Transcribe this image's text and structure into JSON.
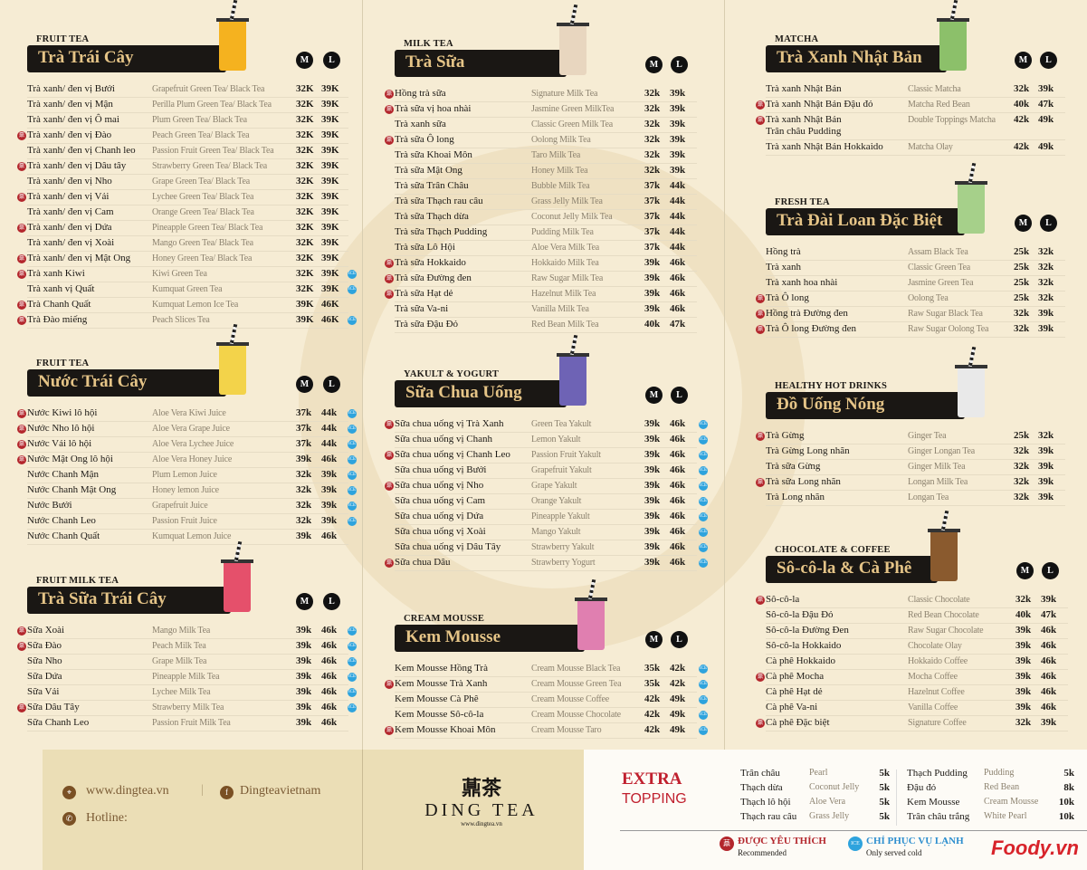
{
  "colors": {
    "background": "#f6ecd4",
    "title_bar": "#1a1714",
    "title_text": "#e5c487",
    "recommended": "#b3262c",
    "ice": "#2ea3dd",
    "extra": "#c0202e"
  },
  "size_labels": {
    "m": "M",
    "l": "L"
  },
  "sections": {
    "fruit_tea": {
      "category": "FRUIT TEA",
      "title": "Trà Trái Cây",
      "rows": [
        {
          "vi": "Trà xanh/ đen vị Bưởi",
          "en": "Grapefruit Green Tea/ Black Tea",
          "m": "32K",
          "l": "39K"
        },
        {
          "vi": "Trà xanh/ đen vị Mận",
          "en": "Perilla Plum Green Tea/ Black Tea",
          "m": "32K",
          "l": "39K"
        },
        {
          "vi": "Trà xanh/ đen vị Ô mai",
          "en": "Plum Green Tea/ Black Tea",
          "m": "32K",
          "l": "39K"
        },
        {
          "vi": "Trà xanh/ đen vị Đào",
          "en": "Peach Green Tea/ Black Tea",
          "m": "32K",
          "l": "39K",
          "rec": true
        },
        {
          "vi": "Trà xanh/ đen vị Chanh leo",
          "en": "Passion Fruit Green Tea/ Black Tea",
          "m": "32K",
          "l": "39K"
        },
        {
          "vi": "Trà xanh/ đen vị Dâu tây",
          "en": "Strawberry Green Tea/ Black Tea",
          "m": "32K",
          "l": "39K",
          "rec": true
        },
        {
          "vi": "Trà xanh/ đen vị Nho",
          "en": "Grape Green Tea/ Black Tea",
          "m": "32K",
          "l": "39K"
        },
        {
          "vi": "Trà xanh/ đen vị Vải",
          "en": "Lychee Green Tea/ Black Tea",
          "m": "32K",
          "l": "39K",
          "rec": true
        },
        {
          "vi": "Trà xanh/ đen vị Cam",
          "en": "Orange Green Tea/ Black Tea",
          "m": "32K",
          "l": "39K"
        },
        {
          "vi": "Trà xanh/ đen vị Dứa",
          "en": "Pineapple Green Tea/ Black Tea",
          "m": "32K",
          "l": "39K",
          "rec": true
        },
        {
          "vi": "Trà xanh/ đen vị Xoài",
          "en": "Mango Green Tea/ Black Tea",
          "m": "32K",
          "l": "39K"
        },
        {
          "vi": "Trà xanh/ đen vị Mật Ong",
          "en": "Honey Green Tea/ Black Tea",
          "m": "32K",
          "l": "39K",
          "rec": true
        },
        {
          "vi": "Trà xanh Kiwi",
          "en": "Kiwi Green Tea",
          "m": "32K",
          "l": "39K",
          "rec": true,
          "ice": true
        },
        {
          "vi": "Trà xanh vị Quất",
          "en": "Kumquat Green Tea",
          "m": "32K",
          "l": "39K",
          "ice": true
        },
        {
          "vi": "Trà Chanh Quất",
          "en": "Kumquat Lemon Ice Tea",
          "m": "39K",
          "l": "46K",
          "rec": true
        },
        {
          "vi": "Trà Đào miếng",
          "en": "Peach Slices Tea",
          "m": "39K",
          "l": "46K",
          "rec": true,
          "ice": true
        }
      ]
    },
    "juice": {
      "category": "FRUIT TEA",
      "title": "Nước Trái Cây",
      "rows": [
        {
          "vi": "Nước Kiwi lô hội",
          "en": "Aloe Vera Kiwi Juice",
          "m": "37k",
          "l": "44k",
          "rec": true,
          "ice": true
        },
        {
          "vi": "Nước Nho lô hội",
          "en": "Aloe Vera Grape Juice",
          "m": "37k",
          "l": "44k",
          "rec": true,
          "ice": true
        },
        {
          "vi": "Nước Vải lô hội",
          "en": "Aloe Vera Lychee Juice",
          "m": "37k",
          "l": "44k",
          "rec": true,
          "ice": true
        },
        {
          "vi": "Nước Mật Ong lô hội",
          "en": "Aloe Vera Honey Juice",
          "m": "39k",
          "l": "46k",
          "rec": true,
          "ice": true
        },
        {
          "vi": "Nước Chanh Mận",
          "en": "Plum Lemon Juice",
          "m": "32k",
          "l": "39k",
          "ice": true
        },
        {
          "vi": "Nước Chanh Mật Ong",
          "en": "Honey lemon Juice",
          "m": "32k",
          "l": "39k",
          "ice": true
        },
        {
          "vi": "Nước Bưởi",
          "en": "Grapefruit Juice",
          "m": "32k",
          "l": "39k",
          "ice": true
        },
        {
          "vi": "Nước Chanh Leo",
          "en": "Passion Fruit Juice",
          "m": "32k",
          "l": "39k",
          "ice": true
        },
        {
          "vi": "Nước Chanh Quất",
          "en": "Kumquat Lemon Juice",
          "m": "39k",
          "l": "46k"
        }
      ]
    },
    "fruit_milk_tea": {
      "category": "FRUIT MILK TEA",
      "title": "Trà Sữa Trái Cây",
      "rows": [
        {
          "vi": "Sữa Xoài",
          "en": "Mango Milk Tea",
          "m": "39k",
          "l": "46k",
          "rec": true,
          "ice": true
        },
        {
          "vi": "Sữa Đào",
          "en": "Peach Milk Tea",
          "m": "39k",
          "l": "46k",
          "rec": true,
          "ice": true
        },
        {
          "vi": "Sữa Nho",
          "en": "Grape Milk Tea",
          "m": "39k",
          "l": "46k",
          "ice": true
        },
        {
          "vi": "Sữa Dứa",
          "en": "Pineapple Milk Tea",
          "m": "39k",
          "l": "46k",
          "ice": true
        },
        {
          "vi": "Sữa Vải",
          "en": "Lychee Milk Tea",
          "m": "39k",
          "l": "46k",
          "ice": true
        },
        {
          "vi": "Sữa Dâu Tây",
          "en": "Strawberry Milk Tea",
          "m": "39k",
          "l": "46k",
          "rec": true,
          "ice": true
        },
        {
          "vi": "Sữa Chanh Leo",
          "en": "Passion Fruit Milk Tea",
          "m": "39k",
          "l": "46k"
        }
      ]
    },
    "milk_tea": {
      "category": "MILK TEA",
      "title": "Trà Sữa",
      "rows": [
        {
          "vi": "Hồng trà sữa",
          "en": "Signature Milk Tea",
          "m": "32k",
          "l": "39k",
          "rec": true
        },
        {
          "vi": "Trà sữa vị hoa nhài",
          "en": "Jasmine Green MilkTea",
          "m": "32k",
          "l": "39k",
          "rec": true
        },
        {
          "vi": "Trà xanh sữa",
          "en": "Classic Green Milk Tea",
          "m": "32k",
          "l": "39k"
        },
        {
          "vi": "Trà sữa Ô long",
          "en": "Oolong Milk Tea",
          "m": "32k",
          "l": "39k",
          "rec": true
        },
        {
          "vi": "Trà sữa Khoai Môn",
          "en": "Taro Milk Tea",
          "m": "32k",
          "l": "39k"
        },
        {
          "vi": "Trà sữa Mật Ong",
          "en": "Honey Milk Tea",
          "m": "32k",
          "l": "39k"
        },
        {
          "vi": "Trà sữa Trân Châu",
          "en": "Bubble Milk Tea",
          "m": "37k",
          "l": "44k"
        },
        {
          "vi": "Trà sữa Thạch rau câu",
          "en": "Grass Jelly Milk Tea",
          "m": "37k",
          "l": "44k"
        },
        {
          "vi": "Trà sữa Thạch dừa",
          "en": "Coconut Jelly Milk Tea",
          "m": "37k",
          "l": "44k"
        },
        {
          "vi": "Trà sữa Thạch Pudding",
          "en": "Pudding Milk Tea",
          "m": "37k",
          "l": "44k"
        },
        {
          "vi": "Trà sữa Lô Hội",
          "en": "Aloe Vera Milk Tea",
          "m": "37k",
          "l": "44k"
        },
        {
          "vi": "Trà sữa Hokkaido",
          "en": "Hokkaido Milk Tea",
          "m": "39k",
          "l": "46k",
          "rec": true
        },
        {
          "vi": "Trà sữa Đường đen",
          "en": "Raw Sugar Milk Tea",
          "m": "39k",
          "l": "46k",
          "rec": true
        },
        {
          "vi": "Trà sữa Hạt dẻ",
          "en": "Hazelnut Milk Tea",
          "m": "39k",
          "l": "46k",
          "rec": true
        },
        {
          "vi": "Trà sữa Va-ni",
          "en": "Vanilla Milk Tea",
          "m": "39k",
          "l": "46k"
        },
        {
          "vi": "Trà sữa Đậu Đỏ",
          "en": "Red Bean Milk Tea",
          "m": "40k",
          "l": "47k"
        }
      ]
    },
    "yakult": {
      "category": "YAKULT & YOGURT",
      "title": "Sữa Chua Uống",
      "rows": [
        {
          "vi": "Sữa chua uống vị Trà Xanh",
          "en": "Green Tea Yakult",
          "m": "39k",
          "l": "46k",
          "rec": true,
          "ice": true
        },
        {
          "vi": "Sữa chua uống vị Chanh",
          "en": "Lemon Yakult",
          "m": "39k",
          "l": "46k",
          "ice": true
        },
        {
          "vi": "Sữa chua uống vị Chanh Leo",
          "en": "Passion Fruit Yakult",
          "m": "39k",
          "l": "46k",
          "rec": true,
          "ice": true
        },
        {
          "vi": "Sữa chua uống vị Bưởi",
          "en": "Grapefruit Yakult",
          "m": "39k",
          "l": "46k",
          "ice": true
        },
        {
          "vi": "Sữa chua uống vị Nho",
          "en": "Grape Yakult",
          "m": "39k",
          "l": "46k",
          "rec": true,
          "ice": true
        },
        {
          "vi": "Sữa chua uống vị Cam",
          "en": "Orange Yakult",
          "m": "39k",
          "l": "46k",
          "ice": true
        },
        {
          "vi": "Sữa chua uống vị Dứa",
          "en": "Pineapple Yakult",
          "m": "39k",
          "l": "46k",
          "ice": true
        },
        {
          "vi": "Sữa chua uống vị Xoài",
          "en": "Mango Yakult",
          "m": "39k",
          "l": "46k",
          "ice": true
        },
        {
          "vi": "Sữa chua uống vị Dâu Tây",
          "en": "Strawberry Yakult",
          "m": "39k",
          "l": "46k",
          "ice": true
        },
        {
          "vi": "Sữa chua  Dâu",
          "en": "Strawberry Yogurt",
          "m": "39k",
          "l": "46k",
          "rec": true,
          "ice": true
        }
      ]
    },
    "mousse": {
      "category": "CREAM MOUSSE",
      "title": "Kem Mousse",
      "rows": [
        {
          "vi": "Kem Mousse Hồng Trà",
          "en": "Cream Mousse Black Tea",
          "m": "35k",
          "l": "42k",
          "ice": true
        },
        {
          "vi": "Kem Mousse Trà Xanh",
          "en": "Cream Mousse Green Tea",
          "m": "35k",
          "l": "42k",
          "rec": true,
          "ice": true
        },
        {
          "vi": "Kem Mousse Cà Phê",
          "en": "Cream Mousse Coffee",
          "m": "42k",
          "l": "49k",
          "ice": true
        },
        {
          "vi": "Kem Mousse Sô-cô-la",
          "en": "Cream Mousse Chocolate",
          "m": "42k",
          "l": "49k",
          "ice": true
        },
        {
          "vi": "Kem Mousse Khoai Môn",
          "en": "Cream Mousse Taro",
          "m": "42k",
          "l": "49k",
          "rec": true,
          "ice": true
        }
      ]
    },
    "matcha": {
      "category": "MATCHA",
      "title": "Trà Xanh Nhật Bản",
      "rows": [
        {
          "vi": "Trà xanh Nhật Bản",
          "en": "Classic Matcha",
          "m": "32k",
          "l": "39k"
        },
        {
          "vi": "Trà xanh Nhật Bản Đậu đỏ",
          "en": "Matcha Red Bean",
          "m": "40k",
          "l": "47k",
          "rec": true
        },
        {
          "vi": "Trà xanh Nhật Bản\nTrân châu Pudding",
          "en": "Double Toppings Matcha",
          "m": "42k",
          "l": "49k",
          "rec": true
        },
        {
          "vi": "Trà xanh Nhật Bản Hokkaido",
          "en": "Matcha Olay",
          "m": "42k",
          "l": "49k"
        }
      ]
    },
    "fresh_tea": {
      "category": "FRESH TEA",
      "title": "Trà Đài Loan Đặc Biệt",
      "rows": [
        {
          "vi": "Hồng trà",
          "en": "Assam Black Tea",
          "m": "25k",
          "l": "32k"
        },
        {
          "vi": "Trà xanh",
          "en": "Classic Green Tea",
          "m": "25k",
          "l": "32k"
        },
        {
          "vi": "Trà xanh hoa nhài",
          "en": "Jasmine Green Tea",
          "m": "25k",
          "l": "32k"
        },
        {
          "vi": "Trà Ô long",
          "en": "Oolong Tea",
          "m": "25k",
          "l": "32k",
          "rec": true
        },
        {
          "vi": "Hồng trà Đường đen",
          "en": "Raw Sugar Black Tea",
          "m": "32k",
          "l": "39k",
          "rec": true
        },
        {
          "vi": "Trà Ô long Đường đen",
          "en": "Raw Sugar Oolong Tea",
          "m": "32k",
          "l": "39k",
          "rec": true
        }
      ]
    },
    "hot": {
      "category": "HEALTHY HOT DRINKS",
      "title": "Đồ Uống Nóng",
      "rows": [
        {
          "vi": "Trà Gừng",
          "en": "Ginger Tea",
          "m": "25k",
          "l": "32k",
          "rec": true
        },
        {
          "vi": "Trà Gừng Long nhãn",
          "en": "Ginger Longan Tea",
          "m": "32k",
          "l": "39k"
        },
        {
          "vi": "Trà sữa Gừng",
          "en": "Ginger Milk Tea",
          "m": "32k",
          "l": "39k"
        },
        {
          "vi": "Trà sữa Long nhãn",
          "en": "Longan Milk Tea",
          "m": "32k",
          "l": "39k",
          "rec": true
        },
        {
          "vi": "Trà Long nhãn",
          "en": "Longan Tea",
          "m": "32k",
          "l": "39k"
        }
      ]
    },
    "choco": {
      "category": "CHOCOLATE & COFFEE",
      "title": "Sô-cô-la & Cà Phê",
      "rows": [
        {
          "vi": "Sô-cô-la",
          "en": "Classic Chocolate",
          "m": "32k",
          "l": "39k",
          "rec": true
        },
        {
          "vi": "Sô-cô-la Đậu Đỏ",
          "en": "Red Bean Chocolate",
          "m": "40k",
          "l": "47k"
        },
        {
          "vi": "Sô-cô-la Đường Đen",
          "en": "Raw Sugar Chocolate",
          "m": "39k",
          "l": "46k"
        },
        {
          "vi": "Sô-cô-la Hokkaido",
          "en": "Chocolate Olay",
          "m": "39k",
          "l": "46k"
        },
        {
          "vi": "Cà phê Hokkaido",
          "en": "Hokkaido Coffee",
          "m": "39k",
          "l": "46k"
        },
        {
          "vi": "Cà phê Mocha",
          "en": "Mocha Coffee",
          "m": "39k",
          "l": "46k",
          "rec": true
        },
        {
          "vi": "Cà phê Hạt dẻ",
          "en": "Hazelnut Coffee",
          "m": "39k",
          "l": "46k"
        },
        {
          "vi": "Cà phê Va-ni",
          "en": "Vanilla Coffee",
          "m": "39k",
          "l": "46k"
        },
        {
          "vi": "Cà phê Đặc biệt",
          "en": "Signature Coffee",
          "m": "32k",
          "l": "39k",
          "rec": true
        }
      ]
    }
  },
  "footer": {
    "website": "www.dingtea.vn",
    "facebook": "Dingteavietnam",
    "hotline": "Hotline:",
    "logo_text": "DING TEA",
    "logo_url": "www.dingtea.vn"
  },
  "extra": {
    "title": "EXTRA",
    "subtitle": "TOPPING",
    "toppings": [
      {
        "vi": "Trân châu",
        "en": "Pearl",
        "price": "5k"
      },
      {
        "vi": "Thạch dừa",
        "en": "Coconut Jelly",
        "price": "5k"
      },
      {
        "vi": "Thạch lô hội",
        "en": "Aloe Vera",
        "price": "5k"
      },
      {
        "vi": "Thạch rau câu",
        "en": "Grass Jelly",
        "price": "5k"
      },
      {
        "vi": "Thạch Pudding",
        "en": "Pudding",
        "price": "5k"
      },
      {
        "vi": "Đậu đỏ",
        "en": "Red Bean",
        "price": "8k"
      },
      {
        "vi": "Kem Mousse",
        "en": "Cream Mousse",
        "price": "10k"
      },
      {
        "vi": "Trân châu trắng",
        "en": "White Pearl",
        "price": "10k"
      }
    ]
  },
  "legend": {
    "rec_title": "ĐƯỢC YÊU THÍCH",
    "rec_sub": "Recommended",
    "ice_badge": "ICE",
    "ice_title": "CHỈ PHỤC VỤ LẠNH",
    "ice_sub": "Only served cold"
  },
  "watermark": "Foody.vn"
}
